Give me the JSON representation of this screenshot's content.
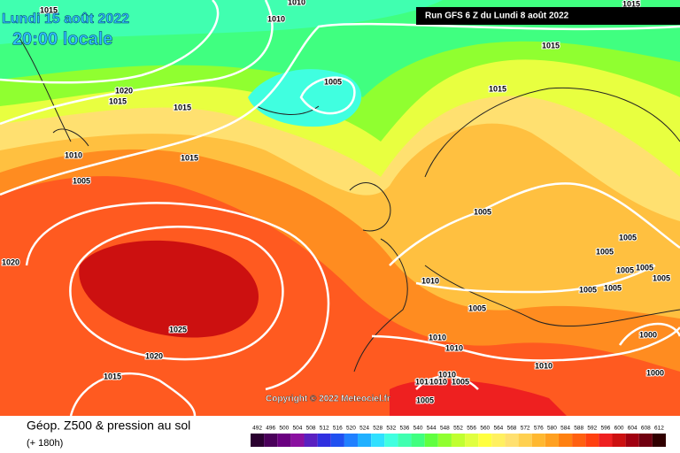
{
  "header": {
    "date": "Lundi 15 août 2022",
    "time": "20:00 locale",
    "run": "Run GFS 6 Z du Lundi 8 août 2022"
  },
  "copyright": "Copyright © 2022 Meteociel.fr",
  "footer": {
    "title": "Géop. Z500 & pression au sol",
    "lead": "(+ 180h)"
  },
  "isobar_labels": [
    1015,
    1010,
    1010,
    1015,
    1015,
    1005,
    1015,
    1020,
    1015,
    1015,
    1010,
    1015,
    1005,
    1005,
    1005,
    1005,
    1005,
    1005,
    1005,
    1005,
    1005,
    1020,
    1010,
    1005,
    1025,
    1000,
    1010,
    1010,
    1020,
    1010,
    1015,
    1010,
    1005,
    1010,
    1010,
    1005,
    1000
  ],
  "legend": {
    "levels": [
      {
        "value": 492,
        "color": "#2a0030"
      },
      {
        "value": 496,
        "color": "#4a005a"
      },
      {
        "value": 500,
        "color": "#6a0080"
      },
      {
        "value": 504,
        "color": "#8a10a0"
      },
      {
        "value": 508,
        "color": "#5a20c0"
      },
      {
        "value": 512,
        "color": "#3030e0"
      },
      {
        "value": 516,
        "color": "#2050f0"
      },
      {
        "value": 520,
        "color": "#2080ff"
      },
      {
        "value": 524,
        "color": "#20b0ff"
      },
      {
        "value": 528,
        "color": "#30e0ff"
      },
      {
        "value": 532,
        "color": "#40ffe0"
      },
      {
        "value": 536,
        "color": "#40ffb0"
      },
      {
        "value": 540,
        "color": "#40ff80"
      },
      {
        "value": 544,
        "color": "#60ff40"
      },
      {
        "value": 548,
        "color": "#90ff30"
      },
      {
        "value": 552,
        "color": "#c0ff30"
      },
      {
        "value": 556,
        "color": "#e0ff40"
      },
      {
        "value": 560,
        "color": "#ffff40"
      },
      {
        "value": 564,
        "color": "#fff060"
      },
      {
        "value": 568,
        "color": "#ffe070"
      },
      {
        "value": 572,
        "color": "#ffd050"
      },
      {
        "value": 576,
        "color": "#ffb830"
      },
      {
        "value": 580,
        "color": "#ffa020"
      },
      {
        "value": 584,
        "color": "#ff8010"
      },
      {
        "value": 588,
        "color": "#ff6010"
      },
      {
        "value": 592,
        "color": "#ff4010"
      },
      {
        "value": 596,
        "color": "#ee2020"
      },
      {
        "value": 600,
        "color": "#cc1010"
      },
      {
        "value": 604,
        "color": "#a00010"
      },
      {
        "value": 608,
        "color": "#700010"
      },
      {
        "value": 612,
        "color": "#300000"
      }
    ]
  }
}
